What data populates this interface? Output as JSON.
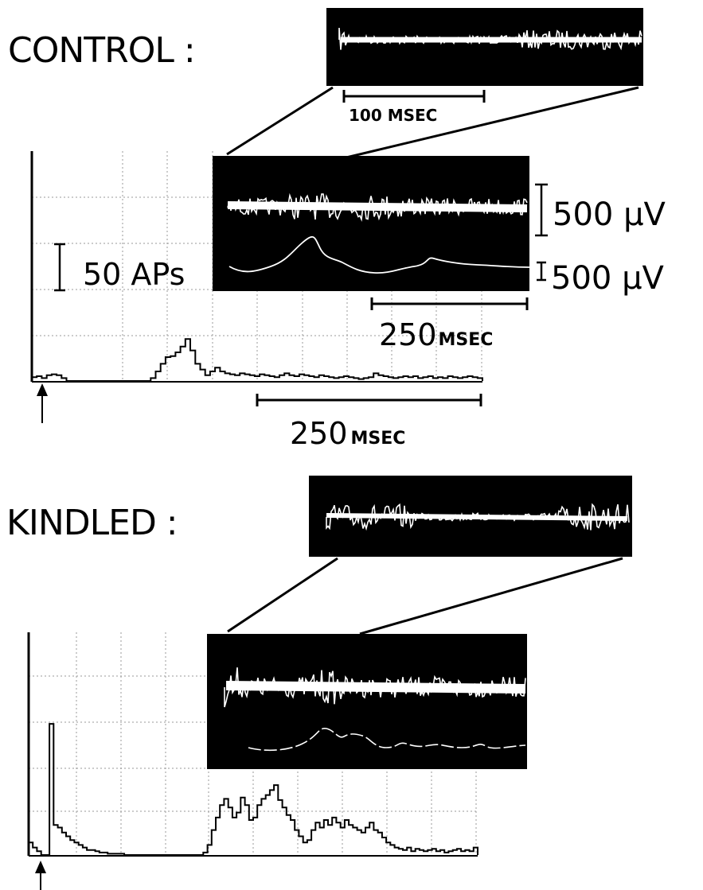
{
  "control": {
    "label": "CONTROL :",
    "inset_scale": "100 MSEC",
    "scale_uv_1": "500 μV",
    "scale_uv_2": "500 μV",
    "scale_aps": "50 APs",
    "trace_scale_num": "250",
    "trace_scale_unit": "MSEC",
    "hist_scale_num": "250",
    "hist_scale_unit": "MSEC",
    "histogram": [
      4,
      5,
      3,
      6,
      7,
      6,
      3,
      0,
      0,
      0,
      0,
      0,
      0,
      0,
      0,
      0,
      0,
      0,
      0,
      0,
      0,
      0,
      0,
      0,
      3,
      10,
      18,
      25,
      26,
      30,
      36,
      44,
      32,
      18,
      12,
      6,
      10,
      14,
      10,
      8,
      7,
      6,
      8,
      7,
      6,
      5,
      7,
      6,
      5,
      4,
      6,
      8,
      6,
      5,
      7,
      6,
      5,
      4,
      6,
      5,
      4,
      3,
      4,
      5,
      4,
      3,
      2,
      3,
      4,
      8,
      6,
      5,
      4,
      3,
      4,
      5,
      4,
      5,
      3,
      4,
      5,
      3,
      4,
      3,
      5,
      4,
      3,
      4,
      5,
      4,
      3
    ]
  },
  "kindled": {
    "label": "KINDLED :",
    "histogram": [
      10,
      6,
      3,
      0,
      0,
      105,
      24,
      22,
      18,
      15,
      12,
      10,
      8,
      6,
      4,
      4,
      3,
      2,
      2,
      1,
      1,
      1,
      1,
      0,
      0,
      0,
      0,
      0,
      0,
      0,
      0,
      0,
      0,
      0,
      0,
      0,
      0,
      0,
      0,
      0,
      0,
      0,
      2,
      8,
      20,
      30,
      40,
      45,
      38,
      30,
      34,
      46,
      40,
      28,
      30,
      40,
      45,
      48,
      52,
      56,
      44,
      38,
      32,
      28,
      20,
      15,
      10,
      12,
      20,
      26,
      22,
      28,
      24,
      30,
      26,
      22,
      28,
      24,
      22,
      20,
      18,
      22,
      26,
      20,
      18,
      14,
      10,
      8,
      6,
      5,
      4,
      6,
      3,
      5,
      4,
      3,
      4,
      5,
      3,
      4,
      2,
      3,
      4,
      5,
      3,
      4,
      3,
      6
    ]
  }
}
